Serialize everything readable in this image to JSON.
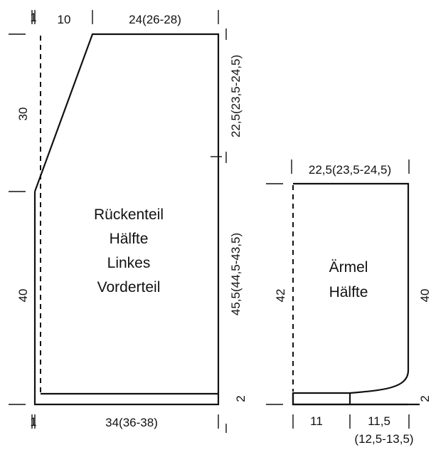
{
  "back_piece": {
    "label_lines": [
      "Rückenteil",
      "Hälfte",
      "Linkes",
      "Vorderteil"
    ],
    "top_left_width": "10",
    "top_right_width": "24(26-28)",
    "bottom_width": "34(36-38)",
    "left_upper_height": "30",
    "left_lower_height": "40",
    "right_upper_height": "22,5(23,5-24,5)",
    "right_lower_height": "45,5(44,5-43,5)",
    "hem_height": "2",
    "edge_marks": "1"
  },
  "sleeve": {
    "label_lines": [
      "Ärmel",
      "Hälfte"
    ],
    "top_width": "22,5(23,5-24,5)",
    "left_height": "42",
    "right_height": "40",
    "hem_height": "2",
    "bottom_left_width": "11",
    "bottom_right_width": "11,5",
    "bottom_right_width_sizes": "(12,5-13,5)"
  }
}
